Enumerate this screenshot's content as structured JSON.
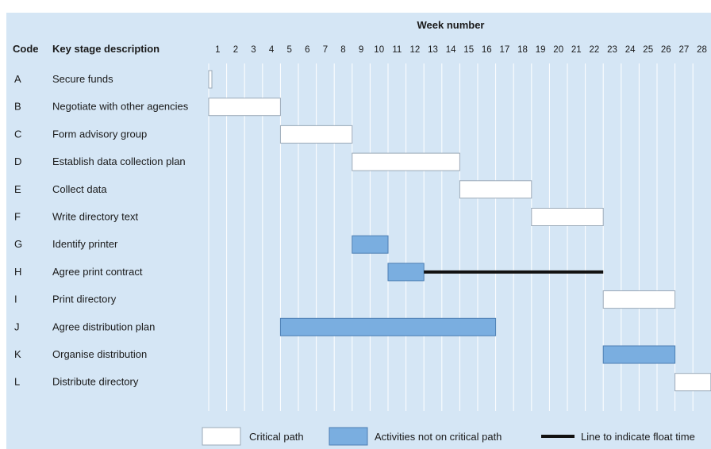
{
  "chart_data": {
    "type": "gantt",
    "title": "Week number",
    "columns": {
      "code": "Code",
      "description": "Key stage description"
    },
    "weeks": [
      1,
      2,
      3,
      4,
      5,
      6,
      7,
      8,
      9,
      10,
      11,
      12,
      13,
      14,
      15,
      16,
      17,
      18,
      19,
      20,
      21,
      22,
      23,
      24,
      25,
      26,
      27,
      28
    ],
    "tasks": [
      {
        "code": "A",
        "label": "Secure funds",
        "start": 1,
        "end": 1,
        "critical": true,
        "float_to": null
      },
      {
        "code": "B",
        "label": "Negotiate with other agencies",
        "start": 1,
        "end": 4,
        "critical": true,
        "float_to": null
      },
      {
        "code": "C",
        "label": "Form advisory group",
        "start": 5,
        "end": 8,
        "critical": true,
        "float_to": null
      },
      {
        "code": "D",
        "label": "Establish data collection plan",
        "start": 9,
        "end": 14,
        "critical": true,
        "float_to": null
      },
      {
        "code": "E",
        "label": "Collect data",
        "start": 15,
        "end": 18,
        "critical": true,
        "float_to": null
      },
      {
        "code": "F",
        "label": "Write directory text",
        "start": 19,
        "end": 22,
        "critical": true,
        "float_to": null
      },
      {
        "code": "G",
        "label": "Identify printer",
        "start": 9,
        "end": 10,
        "critical": false,
        "float_to": null
      },
      {
        "code": "H",
        "label": "Agree print contract",
        "start": 11,
        "end": 12,
        "critical": false,
        "float_to": 22
      },
      {
        "code": "I",
        "label": "Print directory",
        "start": 23,
        "end": 26,
        "critical": true,
        "float_to": null
      },
      {
        "code": "J",
        "label": "Agree distribution plan",
        "start": 5,
        "end": 16,
        "critical": false,
        "float_to": null
      },
      {
        "code": "K",
        "label": "Organise distribution",
        "start": 23,
        "end": 26,
        "critical": false,
        "float_to": null
      },
      {
        "code": "L",
        "label": "Distribute directory",
        "start": 27,
        "end": 28,
        "critical": true,
        "float_to": null
      }
    ],
    "legend": {
      "critical": "Critical path",
      "noncritical": "Activities not on critical path",
      "float": "Line to indicate float time"
    },
    "colors": {
      "background": "#d5e6f5",
      "critical_fill": "#ffffff",
      "noncritical_fill": "#7aaee0",
      "float_line": "#111111",
      "gridline": "#ffffff"
    }
  }
}
